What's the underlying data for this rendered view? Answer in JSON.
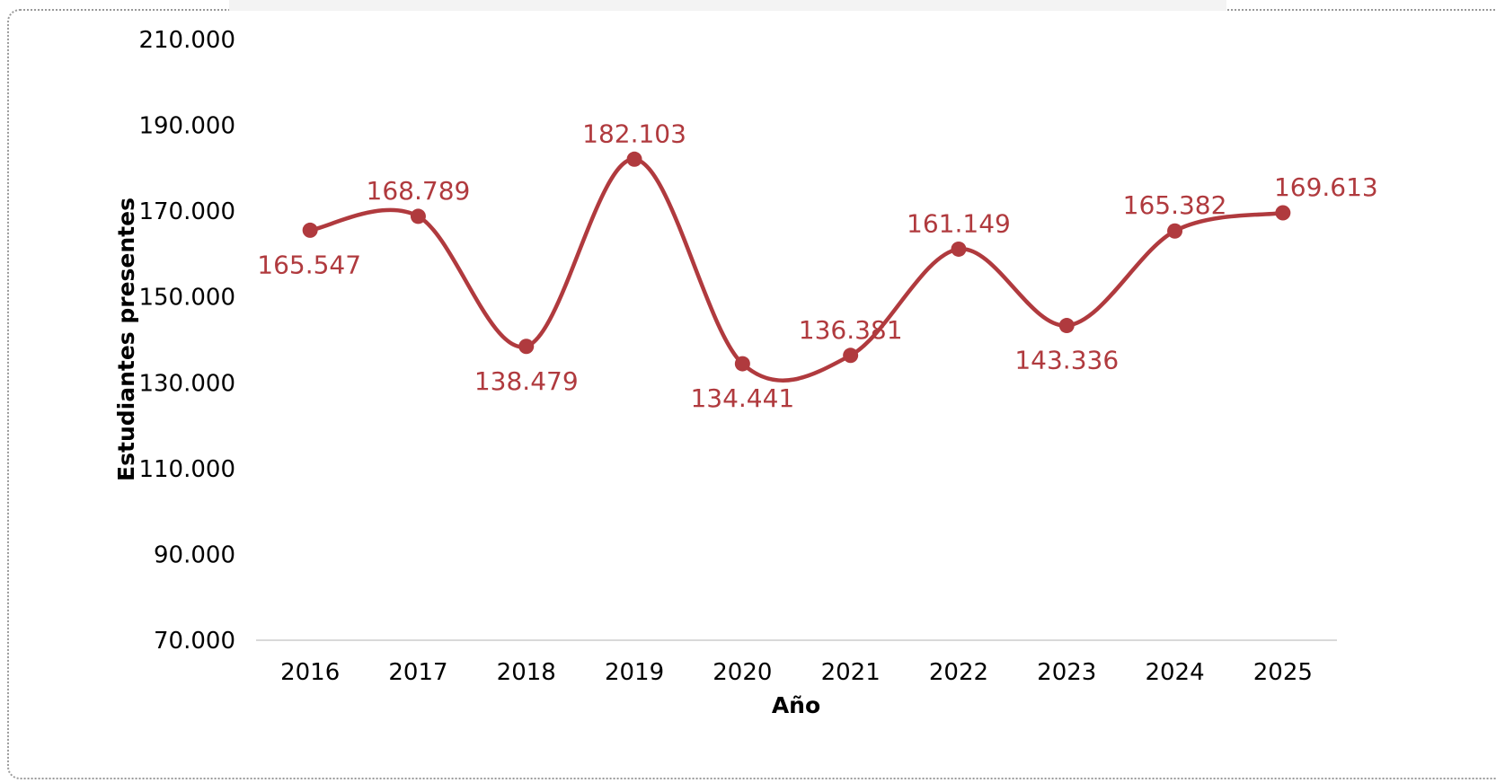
{
  "chart_data": {
    "type": "line",
    "x": [
      "2016",
      "2017",
      "2018",
      "2019",
      "2020",
      "2021",
      "2022",
      "2023",
      "2024",
      "2025"
    ],
    "values": [
      165547,
      168789,
      138479,
      182103,
      134441,
      136381,
      161149,
      143336,
      165382,
      169613
    ],
    "data_labels": [
      "165.547",
      "168.789",
      "138.479",
      "182.103",
      "134.441",
      "136.381",
      "161.149",
      "143.336",
      "165.382",
      "169.613"
    ],
    "y_ticks": [
      "70.000",
      "90.000",
      "110.000",
      "130.000",
      "150.000",
      "170.000",
      "190.000",
      "210.000"
    ],
    "ylim": [
      70000,
      210000
    ],
    "xlabel": "Año",
    "ylabel": "Estudiantes presentes",
    "line_color": "#b03a3e",
    "smooth": true,
    "grid": false,
    "legend": "none"
  }
}
